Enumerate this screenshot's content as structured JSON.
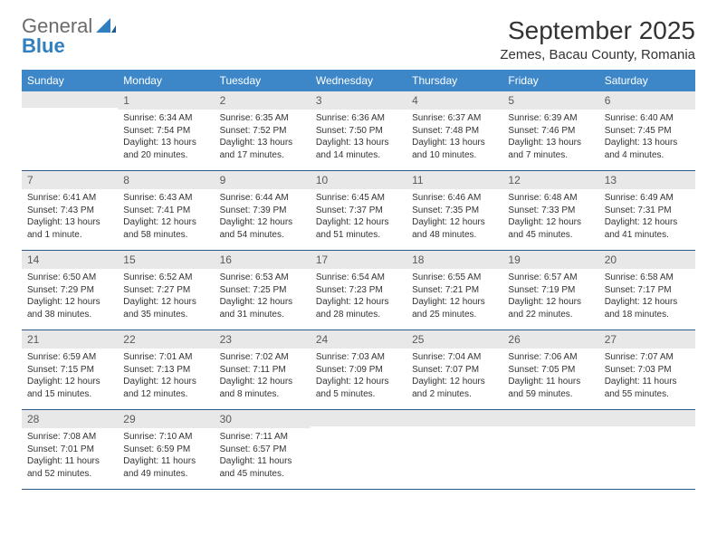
{
  "brand": {
    "general": "General",
    "blue": "Blue"
  },
  "title": "September 2025",
  "location": "Zemes, Bacau County, Romania",
  "colors": {
    "header_bg": "#3d87c9",
    "header_fg": "#ffffff",
    "daynum_bg": "#e8e8e8",
    "rule": "#2b5a8a",
    "logo_gray": "#6b6b6b",
    "logo_blue": "#2f7fc1"
  },
  "weekdays": [
    "Sunday",
    "Monday",
    "Tuesday",
    "Wednesday",
    "Thursday",
    "Friday",
    "Saturday"
  ],
  "weeks": [
    [
      {
        "n": "",
        "lines": [
          "",
          "",
          "",
          ""
        ]
      },
      {
        "n": "1",
        "lines": [
          "Sunrise: 6:34 AM",
          "Sunset: 7:54 PM",
          "Daylight: 13 hours",
          "and 20 minutes."
        ]
      },
      {
        "n": "2",
        "lines": [
          "Sunrise: 6:35 AM",
          "Sunset: 7:52 PM",
          "Daylight: 13 hours",
          "and 17 minutes."
        ]
      },
      {
        "n": "3",
        "lines": [
          "Sunrise: 6:36 AM",
          "Sunset: 7:50 PM",
          "Daylight: 13 hours",
          "and 14 minutes."
        ]
      },
      {
        "n": "4",
        "lines": [
          "Sunrise: 6:37 AM",
          "Sunset: 7:48 PM",
          "Daylight: 13 hours",
          "and 10 minutes."
        ]
      },
      {
        "n": "5",
        "lines": [
          "Sunrise: 6:39 AM",
          "Sunset: 7:46 PM",
          "Daylight: 13 hours",
          "and 7 minutes."
        ]
      },
      {
        "n": "6",
        "lines": [
          "Sunrise: 6:40 AM",
          "Sunset: 7:45 PM",
          "Daylight: 13 hours",
          "and 4 minutes."
        ]
      }
    ],
    [
      {
        "n": "7",
        "lines": [
          "Sunrise: 6:41 AM",
          "Sunset: 7:43 PM",
          "Daylight: 13 hours",
          "and 1 minute."
        ]
      },
      {
        "n": "8",
        "lines": [
          "Sunrise: 6:43 AM",
          "Sunset: 7:41 PM",
          "Daylight: 12 hours",
          "and 58 minutes."
        ]
      },
      {
        "n": "9",
        "lines": [
          "Sunrise: 6:44 AM",
          "Sunset: 7:39 PM",
          "Daylight: 12 hours",
          "and 54 minutes."
        ]
      },
      {
        "n": "10",
        "lines": [
          "Sunrise: 6:45 AM",
          "Sunset: 7:37 PM",
          "Daylight: 12 hours",
          "and 51 minutes."
        ]
      },
      {
        "n": "11",
        "lines": [
          "Sunrise: 6:46 AM",
          "Sunset: 7:35 PM",
          "Daylight: 12 hours",
          "and 48 minutes."
        ]
      },
      {
        "n": "12",
        "lines": [
          "Sunrise: 6:48 AM",
          "Sunset: 7:33 PM",
          "Daylight: 12 hours",
          "and 45 minutes."
        ]
      },
      {
        "n": "13",
        "lines": [
          "Sunrise: 6:49 AM",
          "Sunset: 7:31 PM",
          "Daylight: 12 hours",
          "and 41 minutes."
        ]
      }
    ],
    [
      {
        "n": "14",
        "lines": [
          "Sunrise: 6:50 AM",
          "Sunset: 7:29 PM",
          "Daylight: 12 hours",
          "and 38 minutes."
        ]
      },
      {
        "n": "15",
        "lines": [
          "Sunrise: 6:52 AM",
          "Sunset: 7:27 PM",
          "Daylight: 12 hours",
          "and 35 minutes."
        ]
      },
      {
        "n": "16",
        "lines": [
          "Sunrise: 6:53 AM",
          "Sunset: 7:25 PM",
          "Daylight: 12 hours",
          "and 31 minutes."
        ]
      },
      {
        "n": "17",
        "lines": [
          "Sunrise: 6:54 AM",
          "Sunset: 7:23 PM",
          "Daylight: 12 hours",
          "and 28 minutes."
        ]
      },
      {
        "n": "18",
        "lines": [
          "Sunrise: 6:55 AM",
          "Sunset: 7:21 PM",
          "Daylight: 12 hours",
          "and 25 minutes."
        ]
      },
      {
        "n": "19",
        "lines": [
          "Sunrise: 6:57 AM",
          "Sunset: 7:19 PM",
          "Daylight: 12 hours",
          "and 22 minutes."
        ]
      },
      {
        "n": "20",
        "lines": [
          "Sunrise: 6:58 AM",
          "Sunset: 7:17 PM",
          "Daylight: 12 hours",
          "and 18 minutes."
        ]
      }
    ],
    [
      {
        "n": "21",
        "lines": [
          "Sunrise: 6:59 AM",
          "Sunset: 7:15 PM",
          "Daylight: 12 hours",
          "and 15 minutes."
        ]
      },
      {
        "n": "22",
        "lines": [
          "Sunrise: 7:01 AM",
          "Sunset: 7:13 PM",
          "Daylight: 12 hours",
          "and 12 minutes."
        ]
      },
      {
        "n": "23",
        "lines": [
          "Sunrise: 7:02 AM",
          "Sunset: 7:11 PM",
          "Daylight: 12 hours",
          "and 8 minutes."
        ]
      },
      {
        "n": "24",
        "lines": [
          "Sunrise: 7:03 AM",
          "Sunset: 7:09 PM",
          "Daylight: 12 hours",
          "and 5 minutes."
        ]
      },
      {
        "n": "25",
        "lines": [
          "Sunrise: 7:04 AM",
          "Sunset: 7:07 PM",
          "Daylight: 12 hours",
          "and 2 minutes."
        ]
      },
      {
        "n": "26",
        "lines": [
          "Sunrise: 7:06 AM",
          "Sunset: 7:05 PM",
          "Daylight: 11 hours",
          "and 59 minutes."
        ]
      },
      {
        "n": "27",
        "lines": [
          "Sunrise: 7:07 AM",
          "Sunset: 7:03 PM",
          "Daylight: 11 hours",
          "and 55 minutes."
        ]
      }
    ],
    [
      {
        "n": "28",
        "lines": [
          "Sunrise: 7:08 AM",
          "Sunset: 7:01 PM",
          "Daylight: 11 hours",
          "and 52 minutes."
        ]
      },
      {
        "n": "29",
        "lines": [
          "Sunrise: 7:10 AM",
          "Sunset: 6:59 PM",
          "Daylight: 11 hours",
          "and 49 minutes."
        ]
      },
      {
        "n": "30",
        "lines": [
          "Sunrise: 7:11 AM",
          "Sunset: 6:57 PM",
          "Daylight: 11 hours",
          "and 45 minutes."
        ]
      },
      {
        "n": "",
        "lines": [
          "",
          "",
          "",
          ""
        ]
      },
      {
        "n": "",
        "lines": [
          "",
          "",
          "",
          ""
        ]
      },
      {
        "n": "",
        "lines": [
          "",
          "",
          "",
          ""
        ]
      },
      {
        "n": "",
        "lines": [
          "",
          "",
          "",
          ""
        ]
      }
    ]
  ]
}
